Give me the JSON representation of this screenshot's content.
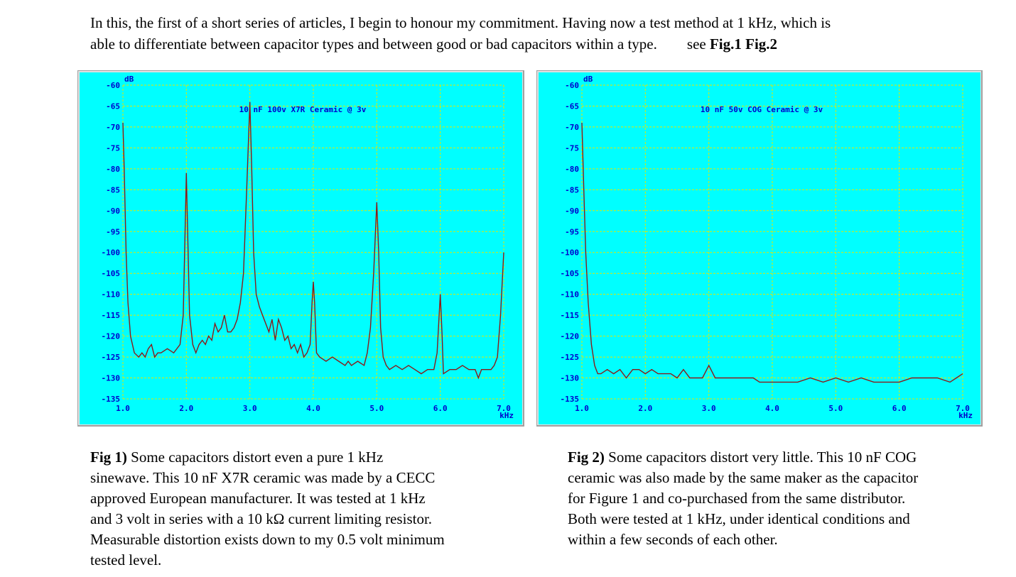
{
  "intro": [
    "In this, the first of a short series of articles, I begin to honour my commitment. Having now a test method at 1 kHz, which is",
    "able to differentiate between capacitor types and between good or bad capacitors within a type."
  ],
  "intro_see": "see",
  "intro_refs": [
    "Fig.1",
    "Fig.2"
  ],
  "chart_data": [
    {
      "type": "line",
      "title": "10 nF 100v X7R Ceramic @ 3v",
      "y_unit": "dB",
      "x_unit": "kHz",
      "xlim": [
        1,
        7
      ],
      "xticks": [
        {
          "value": 1,
          "label": "1.0"
        },
        {
          "value": 2,
          "label": "2.0"
        },
        {
          "value": 3,
          "label": "3.0"
        },
        {
          "value": 4,
          "label": "4.0"
        },
        {
          "value": 5,
          "label": "5.0"
        },
        {
          "value": 6,
          "label": "6.0"
        },
        {
          "value": 7,
          "label": "7.0"
        }
      ],
      "ylim": [
        -135,
        -60
      ],
      "yticks": [
        -60,
        -65,
        -70,
        -75,
        -80,
        -85,
        -90,
        -95,
        -100,
        -105,
        -110,
        -115,
        -120,
        -125,
        -130,
        -135
      ],
      "grid": true,
      "x": [
        1.0,
        1.02,
        1.05,
        1.08,
        1.12,
        1.18,
        1.25,
        1.3,
        1.35,
        1.4,
        1.45,
        1.5,
        1.55,
        1.6,
        1.7,
        1.8,
        1.9,
        1.95,
        1.98,
        2.0,
        2.02,
        2.05,
        2.1,
        2.15,
        2.2,
        2.25,
        2.3,
        2.35,
        2.4,
        2.45,
        2.5,
        2.55,
        2.6,
        2.65,
        2.7,
        2.75,
        2.8,
        2.85,
        2.9,
        2.95,
        3.0,
        3.03,
        3.06,
        3.1,
        3.15,
        3.2,
        3.25,
        3.3,
        3.35,
        3.4,
        3.45,
        3.5,
        3.55,
        3.6,
        3.65,
        3.7,
        3.75,
        3.8,
        3.85,
        3.9,
        3.95,
        3.98,
        4.0,
        4.02,
        4.05,
        4.1,
        4.2,
        4.3,
        4.4,
        4.5,
        4.55,
        4.6,
        4.7,
        4.8,
        4.85,
        4.9,
        4.95,
        5.0,
        5.03,
        5.06,
        5.1,
        5.15,
        5.2,
        5.3,
        5.4,
        5.5,
        5.6,
        5.7,
        5.8,
        5.9,
        5.95,
        6.0,
        6.03,
        6.05,
        6.15,
        6.25,
        6.35,
        6.45,
        6.55,
        6.6,
        6.65,
        6.7,
        6.8,
        6.85,
        6.9,
        6.95,
        7.0
      ],
      "series": [
        {
          "color": "#8b1a1a",
          "values": [
            -69,
            -80,
            -100,
            -112,
            -120,
            -124,
            -125,
            -124,
            -125,
            -123,
            -122,
            -125,
            -124,
            -124,
            -123,
            -124,
            -122,
            -115,
            -95,
            -81,
            -95,
            -115,
            -122,
            -124,
            -122,
            -121,
            -122,
            -120,
            -121,
            -117,
            -119,
            -118,
            -115,
            -119,
            -119,
            -118,
            -116,
            -112,
            -105,
            -85,
            -64,
            -80,
            -100,
            -110,
            -113,
            -115,
            -117,
            -119,
            -116,
            -121,
            -116,
            -118,
            -121,
            -120,
            -123,
            -122,
            -124,
            -122,
            -125,
            -124,
            -122,
            -112,
            -107,
            -112,
            -124,
            -125,
            -126,
            -125,
            -126,
            -127,
            -126,
            -127,
            -126,
            -127,
            -124,
            -118,
            -105,
            -88,
            -100,
            -118,
            -125,
            -127,
            -128,
            -127,
            -128,
            -127,
            -128,
            -129,
            -128,
            -128,
            -124,
            -110,
            -120,
            -129,
            -128,
            -128,
            -127,
            -128,
            -128,
            -130,
            -128,
            -128,
            -128,
            -127,
            -125,
            -115,
            -100
          ]
        }
      ]
    },
    {
      "type": "line",
      "title": "10 nF 50v COG Ceramic @ 3v",
      "y_unit": "dB",
      "x_unit": "kHz",
      "xlim": [
        1,
        7
      ],
      "xticks": [
        {
          "value": 1,
          "label": "1.0"
        },
        {
          "value": 2,
          "label": "2.0"
        },
        {
          "value": 3,
          "label": "3.0"
        },
        {
          "value": 4,
          "label": "4.0"
        },
        {
          "value": 5,
          "label": "5.0"
        },
        {
          "value": 6,
          "label": "6.0"
        },
        {
          "value": 7,
          "label": "7.0"
        }
      ],
      "ylim": [
        -135,
        -60
      ],
      "yticks": [
        -60,
        -65,
        -70,
        -75,
        -80,
        -85,
        -90,
        -95,
        -100,
        -105,
        -110,
        -115,
        -120,
        -125,
        -130,
        -135
      ],
      "grid": true,
      "x": [
        1.0,
        1.03,
        1.06,
        1.1,
        1.15,
        1.2,
        1.25,
        1.3,
        1.4,
        1.5,
        1.6,
        1.7,
        1.8,
        1.9,
        2.0,
        2.1,
        2.2,
        2.3,
        2.4,
        2.5,
        2.6,
        2.7,
        2.8,
        2.9,
        3.0,
        3.1,
        3.2,
        3.3,
        3.4,
        3.5,
        3.6,
        3.7,
        3.8,
        3.9,
        4.0,
        4.2,
        4.4,
        4.6,
        4.8,
        5.0,
        5.2,
        5.4,
        5.6,
        5.8,
        6.0,
        6.2,
        6.4,
        6.6,
        6.8,
        6.9,
        7.0
      ],
      "series": [
        {
          "color": "#8b1a1a",
          "values": [
            -69,
            -85,
            -100,
            -112,
            -122,
            -127,
            -129,
            -129,
            -128,
            -129,
            -128,
            -130,
            -128,
            -128,
            -129,
            -128,
            -129,
            -129,
            -129,
            -130,
            -128,
            -130,
            -130,
            -130,
            -127,
            -130,
            -130,
            -130,
            -130,
            -130,
            -130,
            -130,
            -131,
            -131,
            -131,
            -131,
            -131,
            -130,
            -131,
            -130,
            -131,
            -130,
            -131,
            -131,
            -131,
            -130,
            -130,
            -130,
            -131,
            -130,
            -129
          ]
        }
      ]
    }
  ],
  "captions": [
    {
      "label": "Fig 1)",
      "lines": [
        "Some capacitors distort even a pure 1 kHz",
        "sinewave. This 10 nF X7R ceramic was made by a CECC",
        "approved European manufacturer. It was tested at 1 kHz",
        "and 3 volt in series with a 10 kΩ current limiting resistor.",
        "Measurable distortion exists down to my 0.5 volt minimum",
        "tested level."
      ]
    },
    {
      "label": "Fig 2)",
      "lines": [
        "Some capacitors distort very little. This 10 nF COG",
        "ceramic was also made by the same maker as the capacitor",
        "for Figure 1 and co-purchased from the same distributor.",
        "Both were tested at 1 kHz, under identical conditions and",
        "within a few seconds of each other."
      ]
    }
  ]
}
